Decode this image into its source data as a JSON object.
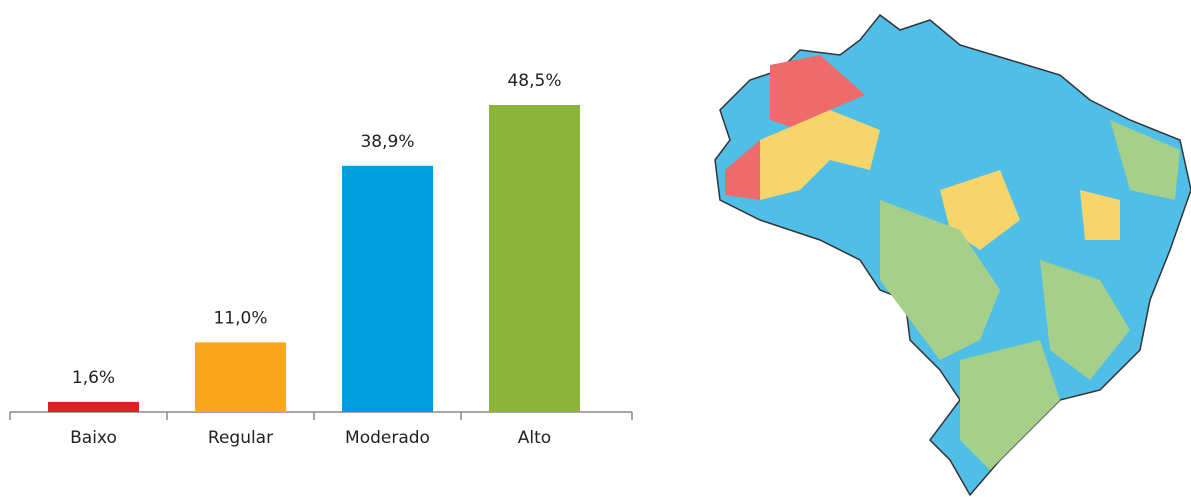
{
  "chart_data": {
    "type": "bar",
    "categories": [
      "Baixo",
      "Regular",
      "Moderado",
      "Alto"
    ],
    "values": [
      1.6,
      11.0,
      38.9,
      48.5
    ],
    "value_labels": [
      "1,6%",
      "11,0%",
      "38,9%",
      "48,5%"
    ],
    "colors": [
      "#e31e24",
      "#f9a61a",
      "#00a0e0",
      "#8cb43a"
    ]
  }
}
